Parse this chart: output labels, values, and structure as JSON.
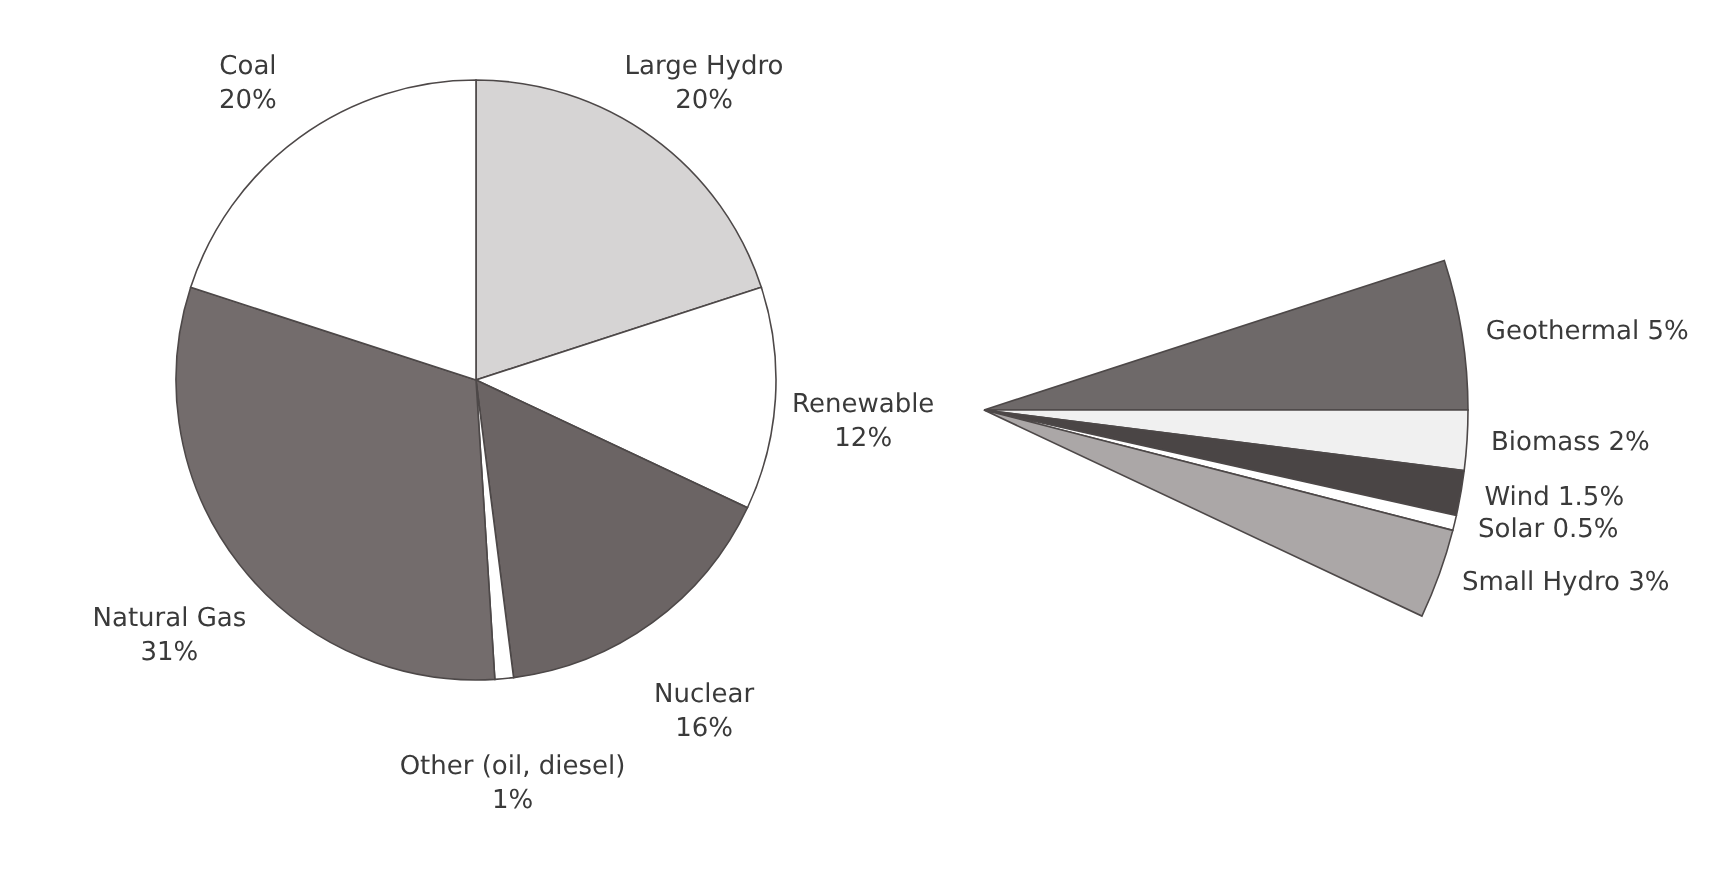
{
  "chart_data": [
    {
      "type": "pie",
      "categories": [
        "Large Hydro",
        "Renewable",
        "Nuclear",
        "Other (oil, diesel)",
        "Natural Gas",
        "Coal"
      ],
      "values": [
        20,
        12,
        16,
        1,
        31,
        20
      ],
      "value_labels": [
        "20%",
        "12%",
        "16%",
        "1%",
        "31%",
        "20%"
      ],
      "colors": [
        "#d6d4d4",
        "#ffffff",
        "#6b6464",
        "#ffffff",
        "#736c6c",
        "#ffffff"
      ]
    },
    {
      "type": "pie",
      "categories": [
        "Geothermal",
        "Biomass",
        "Wind",
        "Solar",
        "Small Hydro"
      ],
      "values": [
        5,
        2,
        1.5,
        0.5,
        3
      ],
      "value_labels": [
        "5%",
        "2%",
        "1.5%",
        "0.5%",
        "3%"
      ],
      "colors": [
        "#6e6969",
        "#f0f0f0",
        "#4a4545",
        "#ffffff",
        "#aba7a7"
      ]
    }
  ]
}
